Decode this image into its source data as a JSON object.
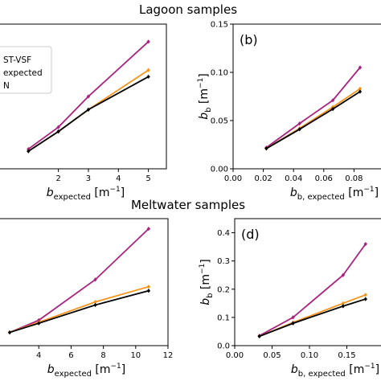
{
  "titles": {
    "top": "Lagoon samples",
    "bottom": "Meltwater samples"
  },
  "colors": {
    "magenta": "#a8237f",
    "orange": "#f5941d",
    "black": "#000000"
  },
  "chart_data": [
    {
      "type": "line",
      "xlabel": "b_expected [m^-1]",
      "xlabel_parts": {
        "main": "b",
        "sub": "expected",
        "unit": " [m",
        "sup": "−1",
        "close": "]"
      },
      "xlim": [
        0,
        5.6
      ],
      "xticks": [
        2,
        3,
        4,
        5
      ],
      "ylim": [
        0.6,
        7.2
      ],
      "legend": {
        "placement": "upper-left",
        "entries": [
          "ST-VSF",
          "expected",
          "N"
        ]
      },
      "series": [
        {
          "color": "magenta",
          "x": [
            1,
            2,
            3,
            5
          ],
          "y": [
            1.5,
            2.5,
            3.9,
            6.4
          ]
        },
        {
          "color": "orange",
          "x": [
            1,
            2,
            3,
            5
          ],
          "y": [
            1.4,
            2.3,
            3.3,
            5.1
          ]
        },
        {
          "color": "black",
          "x": [
            1,
            2,
            3,
            5
          ],
          "y": [
            1.4,
            2.3,
            3.3,
            4.8
          ]
        }
      ]
    },
    {
      "type": "line",
      "panel_label": "(b)",
      "xlabel": "b_b,expected [m^-1]",
      "xlabel_parts": {
        "main": "b",
        "sub": "b, expected",
        "unit": " [m",
        "sup": "−1",
        "close": "]"
      },
      "ylabel": "b_b [m^-1]",
      "ylabel_parts": {
        "main": "b",
        "sub": "b",
        "unit": " [m",
        "sup": "−1",
        "close": "]"
      },
      "xlim": [
        0,
        0.1
      ],
      "ylim": [
        0,
        0.15
      ],
      "xticks": [
        "0.00",
        "0.02",
        "0.04",
        "0.06",
        "0.08"
      ],
      "yticks": [
        "0.00",
        "0.05",
        "0.10",
        "0.15"
      ],
      "series": [
        {
          "color": "magenta",
          "x": [
            0.022,
            0.044,
            0.066,
            0.084
          ],
          "y": [
            0.022,
            0.047,
            0.071,
            0.105
          ]
        },
        {
          "color": "orange",
          "x": [
            0.022,
            0.044,
            0.066,
            0.084
          ],
          "y": [
            0.021,
            0.042,
            0.064,
            0.083
          ]
        },
        {
          "color": "black",
          "x": [
            0.022,
            0.044,
            0.066,
            0.084
          ],
          "y": [
            0.021,
            0.041,
            0.062,
            0.08
          ]
        }
      ]
    },
    {
      "type": "line",
      "xlabel": "b_expected [m^-1]",
      "xlabel_parts": {
        "main": "b",
        "sub": "expected",
        "unit": " [m",
        "sup": "−1",
        "close": "]"
      },
      "xlim": [
        1.5,
        12
      ],
      "xticks": [
        4,
        6,
        8,
        10,
        12
      ],
      "ylim": [
        0.5,
        13
      ],
      "series": [
        {
          "color": "magenta",
          "x": [
            2.2,
            4,
            7.5,
            10.8
          ],
          "y": [
            1.8,
            3.0,
            7.0,
            12.0
          ]
        },
        {
          "color": "orange",
          "x": [
            2.2,
            4,
            7.5,
            10.8
          ],
          "y": [
            1.8,
            2.8,
            4.8,
            6.3
          ]
        },
        {
          "color": "black",
          "x": [
            2.2,
            4,
            7.5,
            10.8
          ],
          "y": [
            1.8,
            2.7,
            4.5,
            5.9
          ]
        }
      ]
    },
    {
      "type": "line",
      "panel_label": "(d)",
      "xlabel": "b_b,expected [m^-1]",
      "xlabel_parts": {
        "main": "b",
        "sub": "b, expected",
        "unit": " [m",
        "sup": "−1",
        "close": "]"
      },
      "ylabel": "b_b [m^-1]",
      "ylabel_parts": {
        "main": "b",
        "sub": "b",
        "unit": " [m",
        "sup": "−1",
        "close": "]"
      },
      "xlim": [
        0,
        0.2
      ],
      "ylim": [
        0,
        0.45
      ],
      "xticks": [
        "0.00",
        "0.05",
        "0.10",
        "0.15"
      ],
      "yticks": [
        "0.0",
        "0.1",
        "0.2",
        "0.3",
        "0.4"
      ],
      "series": [
        {
          "color": "magenta",
          "x": [
            0.033,
            0.078,
            0.145,
            0.175
          ],
          "y": [
            0.035,
            0.1,
            0.25,
            0.36
          ]
        },
        {
          "color": "orange",
          "x": [
            0.033,
            0.078,
            0.145,
            0.175
          ],
          "y": [
            0.033,
            0.082,
            0.15,
            0.18
          ]
        },
        {
          "color": "black",
          "x": [
            0.033,
            0.078,
            0.145,
            0.175
          ],
          "y": [
            0.033,
            0.079,
            0.14,
            0.165
          ]
        }
      ]
    }
  ]
}
